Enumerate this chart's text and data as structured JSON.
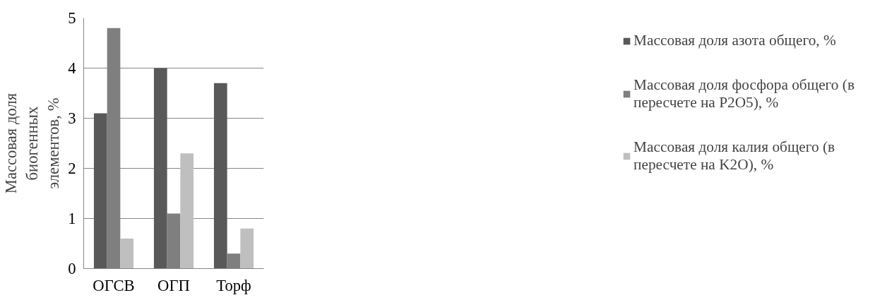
{
  "chart_data": {
    "type": "bar",
    "ylabel": "Массовая доля биогенных элементов, %",
    "categories": [
      "ОГСВ",
      "ОГП",
      "Торф"
    ],
    "series": [
      {
        "name": "Массовая доля азота общего, %",
        "color": "#595959",
        "values": [
          3.1,
          4.0,
          3.7
        ]
      },
      {
        "name": "Массовая доля фосфора общего (в пересчете на P2O5), %",
        "color": "#7f7f7f",
        "values": [
          4.8,
          1.1,
          0.3
        ]
      },
      {
        "name": "Массовая доля калия общего (в пересчете на K2O), %",
        "color": "#bfbfbf",
        "values": [
          0.6,
          2.3,
          0.8
        ]
      }
    ],
    "ylim": [
      0,
      5
    ],
    "yticks": [
      0,
      1,
      2,
      3,
      4,
      5
    ],
    "grid": "y",
    "legend": "right"
  }
}
